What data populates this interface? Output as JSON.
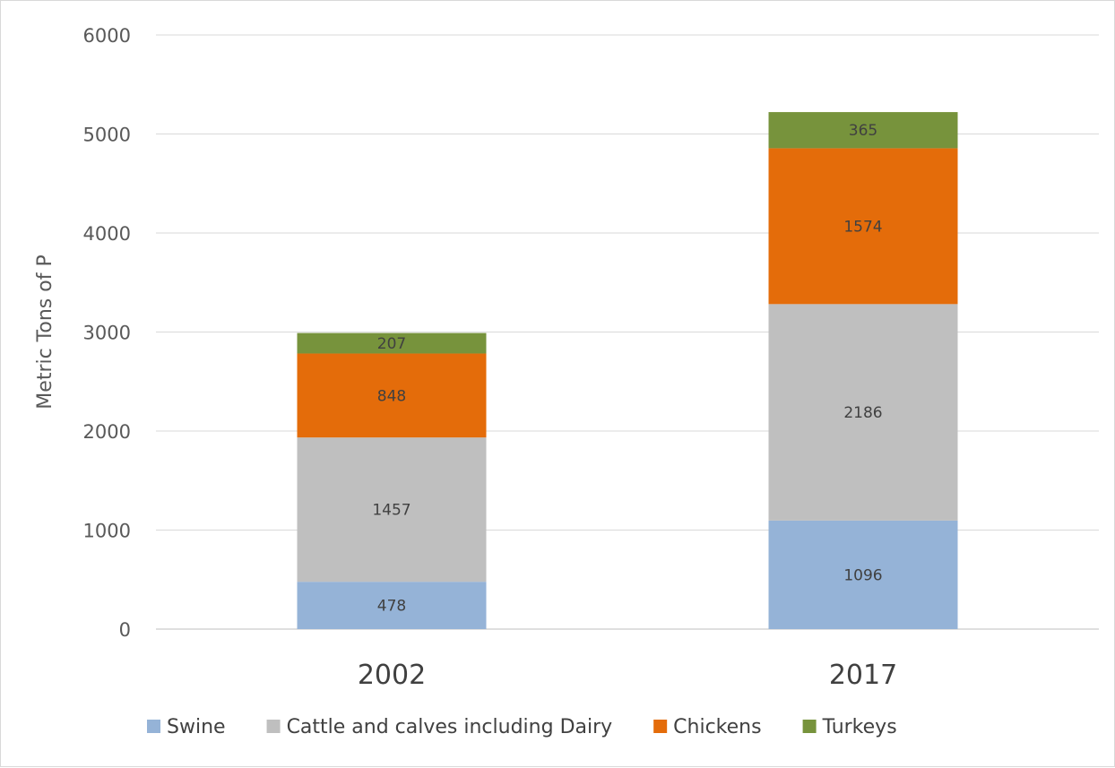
{
  "chart_data": {
    "type": "bar",
    "stacked": true,
    "title": "",
    "xlabel": "",
    "ylabel": "Metric Tons of P",
    "ylim": [
      0,
      6000
    ],
    "yticks": [
      0,
      1000,
      2000,
      3000,
      4000,
      5000,
      6000
    ],
    "grid": true,
    "legend_position": "bottom",
    "categories": [
      "2002",
      "2017"
    ],
    "series": [
      {
        "name": "Swine",
        "values": [
          478,
          1096
        ],
        "color": "#95b3d7"
      },
      {
        "name": "Cattle and calves including Dairy",
        "values": [
          1457,
          2186
        ],
        "color": "#bfbfbf"
      },
      {
        "name": "Chickens",
        "values": [
          848,
          1574
        ],
        "color": "#e46c0a"
      },
      {
        "name": "Turkeys",
        "values": [
          207,
          365
        ],
        "color": "#77933c"
      }
    ]
  }
}
